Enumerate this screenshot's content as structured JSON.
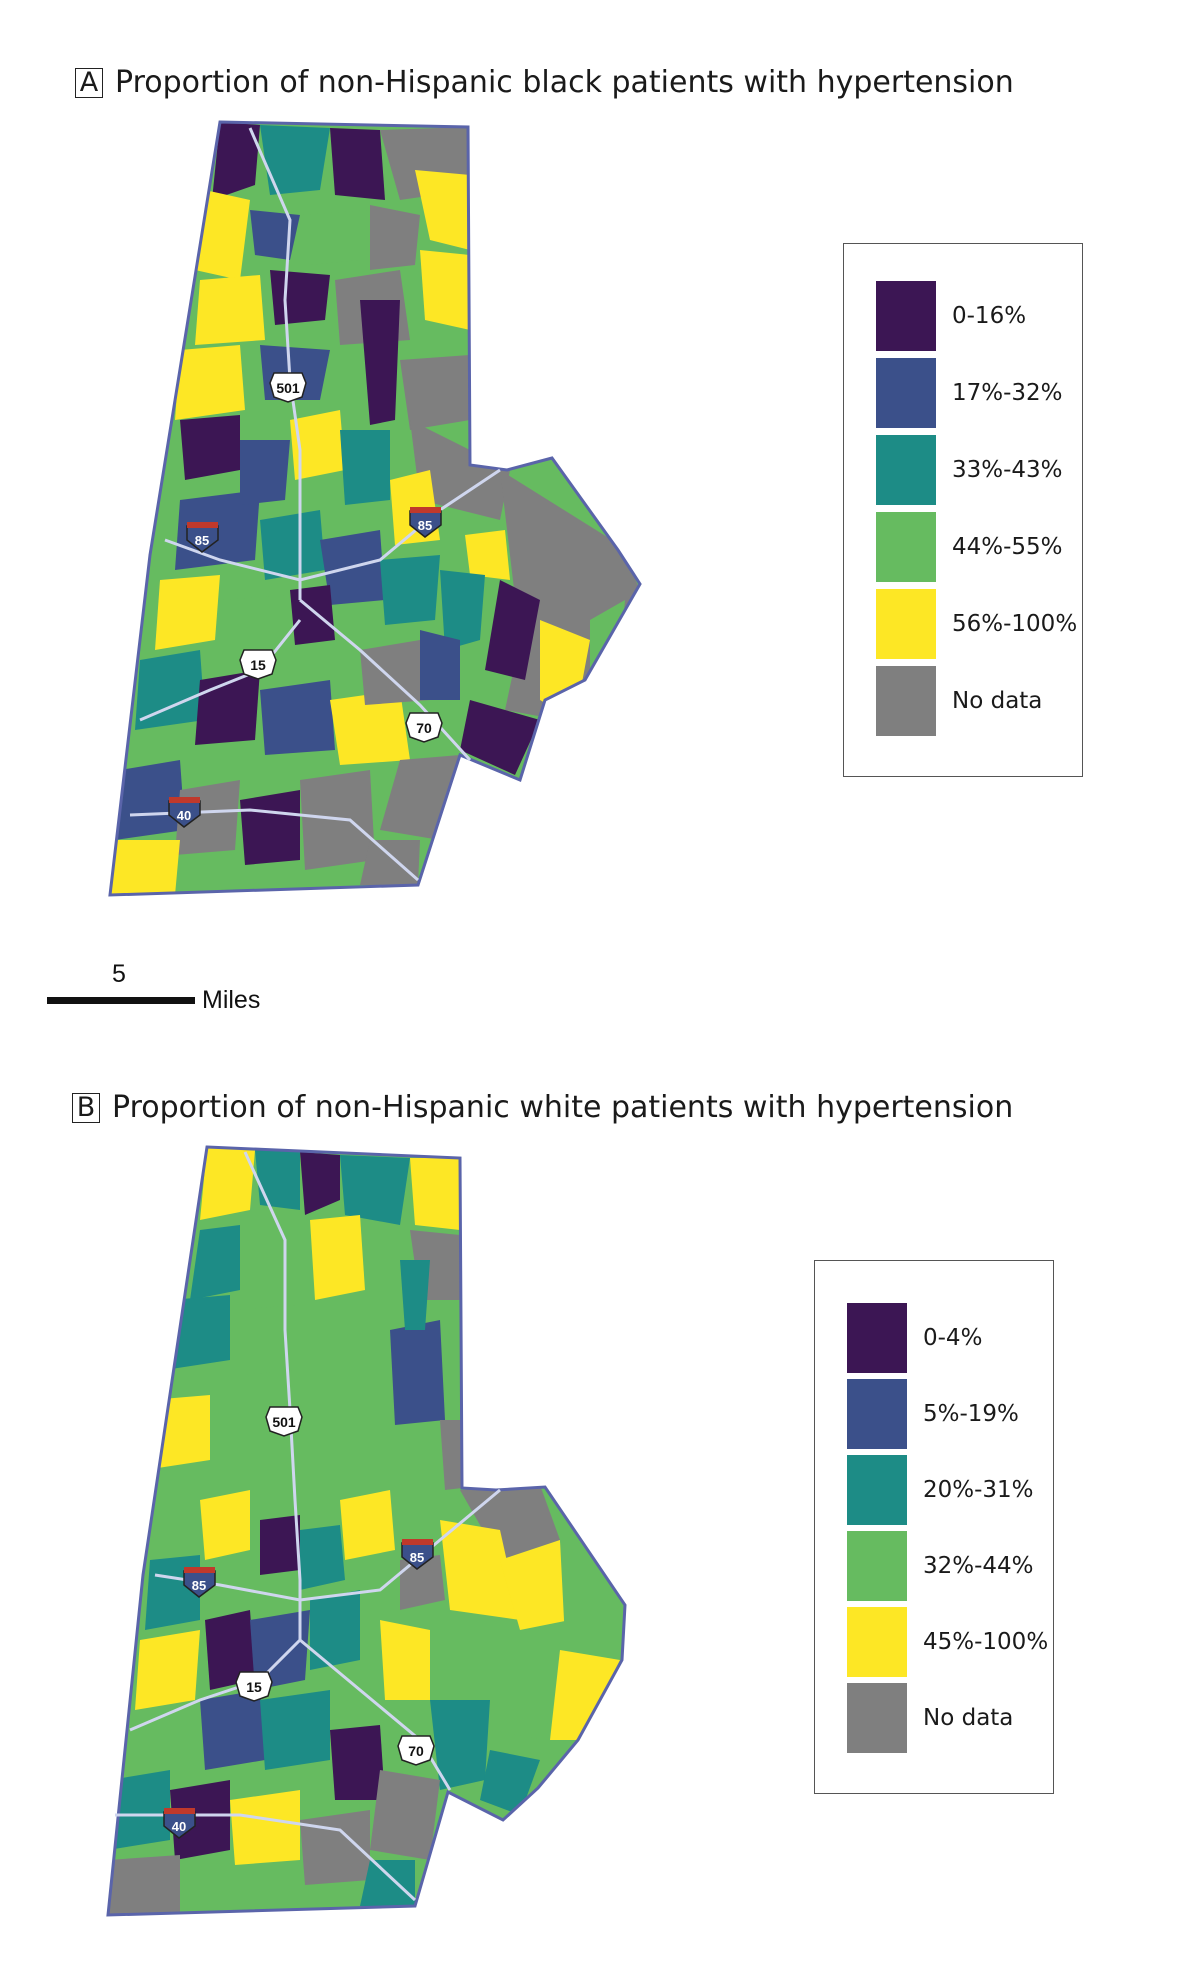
{
  "palette": {
    "purple": "#3c1654",
    "blue": "#3b508a",
    "teal": "#1d8c86",
    "green": "#66bb60",
    "yellow": "#fde725",
    "gray": "#7f7f7f",
    "boundary": "#5a64aa",
    "road": "#cfd6ee"
  },
  "panels": [
    {
      "letter": "A",
      "title": "Proportion of non-Hispanic black patients with hypertension",
      "legend": [
        {
          "label": "0-16%",
          "color": "#3c1654"
        },
        {
          "label": "17%-32%",
          "color": "#3b508a"
        },
        {
          "label": "33%-43%",
          "color": "#1d8c86"
        },
        {
          "label": "44%-55%",
          "color": "#66bb60"
        },
        {
          "label": "56%-100%",
          "color": "#fde725"
        },
        {
          "label": "No data",
          "color": "#7f7f7f"
        }
      ],
      "shields": {
        "us501": "501",
        "i85_west": "85",
        "i85_east": "85",
        "us15": "15",
        "us70": "70",
        "i40": "40"
      }
    },
    {
      "letter": "B",
      "title": "Proportion of non-Hispanic white patients with hypertension",
      "legend": [
        {
          "label": "0-4%",
          "color": "#3c1654"
        },
        {
          "label": "5%-19%",
          "color": "#3b508a"
        },
        {
          "label": "20%-31%",
          "color": "#1d8c86"
        },
        {
          "label": "32%-44%",
          "color": "#66bb60"
        },
        {
          "label": "45%-100%",
          "color": "#fde725"
        },
        {
          "label": "No data",
          "color": "#7f7f7f"
        }
      ],
      "shields": {
        "us501": "501",
        "i85_west": "85",
        "i85_east": "85",
        "us15": "15",
        "us70": "70",
        "i40": "40"
      }
    }
  ],
  "scale_bar": {
    "value": "5",
    "unit": "Miles"
  }
}
